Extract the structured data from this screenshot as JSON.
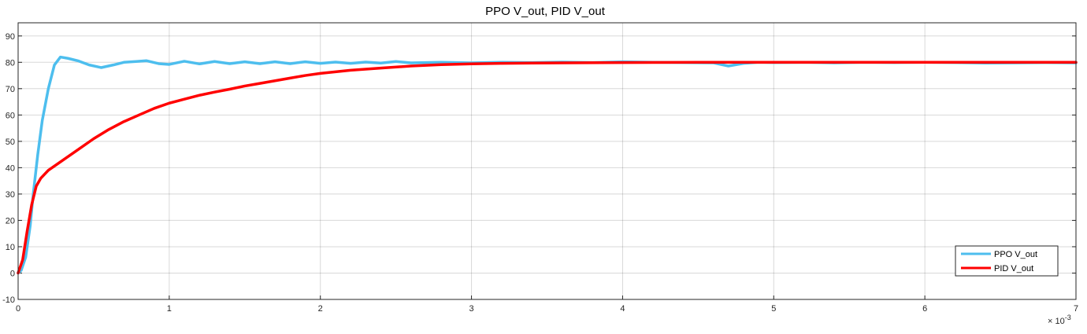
{
  "chart_data": {
    "type": "line",
    "title": "PPO V_out, PID V_out",
    "xlabel": "",
    "ylabel": "",
    "xlim": [
      0,
      7
    ],
    "ylim": [
      -10,
      95
    ],
    "x_exponent_label": "× 10",
    "x_exponent_power": "-3",
    "x_ticks": [
      "0",
      "1",
      "2",
      "3",
      "4",
      "5",
      "6",
      "7"
    ],
    "y_ticks": [
      "-10",
      "0",
      "10",
      "20",
      "30",
      "40",
      "50",
      "60",
      "70",
      "80",
      "90"
    ],
    "grid": true,
    "legend_position": "bottom-right",
    "series": [
      {
        "name": "PPO V_out",
        "color": "#4DBEEE",
        "points": [
          [
            0,
            0
          ],
          [
            0.02,
            1
          ],
          [
            0.05,
            6
          ],
          [
            0.08,
            18
          ],
          [
            0.1,
            30
          ],
          [
            0.13,
            45
          ],
          [
            0.16,
            58
          ],
          [
            0.2,
            70
          ],
          [
            0.24,
            79
          ],
          [
            0.28,
            82
          ],
          [
            0.33,
            81.5
          ],
          [
            0.4,
            80.5
          ],
          [
            0.47,
            79
          ],
          [
            0.55,
            78
          ],
          [
            0.63,
            79
          ],
          [
            0.7,
            80
          ],
          [
            0.78,
            80.3
          ],
          [
            0.85,
            80.6
          ],
          [
            0.93,
            79.5
          ],
          [
            1.0,
            79.2
          ],
          [
            1.1,
            80.4
          ],
          [
            1.2,
            79.4
          ],
          [
            1.3,
            80.3
          ],
          [
            1.4,
            79.5
          ],
          [
            1.5,
            80.2
          ],
          [
            1.6,
            79.5
          ],
          [
            1.7,
            80.2
          ],
          [
            1.8,
            79.5
          ],
          [
            1.9,
            80.2
          ],
          [
            2.0,
            79.6
          ],
          [
            2.1,
            80.1
          ],
          [
            2.2,
            79.6
          ],
          [
            2.3,
            80.1
          ],
          [
            2.4,
            79.7
          ],
          [
            2.5,
            80.3
          ],
          [
            2.6,
            79.8
          ],
          [
            2.8,
            80.0
          ],
          [
            3.0,
            79.8
          ],
          [
            3.2,
            80.0
          ],
          [
            3.4,
            79.9
          ],
          [
            3.6,
            80.1
          ],
          [
            3.8,
            79.9
          ],
          [
            4.0,
            80.2
          ],
          [
            4.2,
            80.0
          ],
          [
            4.4,
            79.9
          ],
          [
            4.6,
            79.8
          ],
          [
            4.7,
            78.6
          ],
          [
            4.8,
            79.6
          ],
          [
            4.9,
            80.0
          ],
          [
            5.0,
            79.9
          ],
          [
            5.2,
            80.0
          ],
          [
            5.4,
            79.8
          ],
          [
            5.6,
            80.0
          ],
          [
            5.8,
            79.9
          ],
          [
            6.0,
            80.0
          ],
          [
            6.2,
            79.9
          ],
          [
            6.4,
            79.7
          ],
          [
            6.6,
            79.8
          ],
          [
            6.8,
            79.9
          ],
          [
            7.0,
            79.8
          ]
        ]
      },
      {
        "name": "PID V_out",
        "color": "#FF0000",
        "points": [
          [
            0,
            0
          ],
          [
            0.03,
            5
          ],
          [
            0.06,
            16
          ],
          [
            0.09,
            26
          ],
          [
            0.12,
            33
          ],
          [
            0.15,
            36
          ],
          [
            0.2,
            39
          ],
          [
            0.3,
            43
          ],
          [
            0.4,
            47
          ],
          [
            0.5,
            51
          ],
          [
            0.6,
            54.5
          ],
          [
            0.7,
            57.5
          ],
          [
            0.8,
            60
          ],
          [
            0.9,
            62.5
          ],
          [
            1.0,
            64.5
          ],
          [
            1.1,
            66
          ],
          [
            1.2,
            67.5
          ],
          [
            1.3,
            68.7
          ],
          [
            1.4,
            69.8
          ],
          [
            1.5,
            71
          ],
          [
            1.6,
            72
          ],
          [
            1.7,
            73
          ],
          [
            1.8,
            74
          ],
          [
            1.9,
            75
          ],
          [
            2.0,
            75.8
          ],
          [
            2.2,
            77
          ],
          [
            2.4,
            77.8
          ],
          [
            2.6,
            78.6
          ],
          [
            2.8,
            79.1
          ],
          [
            3.0,
            79.4
          ],
          [
            3.2,
            79.6
          ],
          [
            3.4,
            79.7
          ],
          [
            3.6,
            79.8
          ],
          [
            4.0,
            79.9
          ],
          [
            4.5,
            80.0
          ],
          [
            5.0,
            80.0
          ],
          [
            5.5,
            80.0
          ],
          [
            6.0,
            80.0
          ],
          [
            6.5,
            80.0
          ],
          [
            7.0,
            80.0
          ]
        ]
      }
    ]
  }
}
